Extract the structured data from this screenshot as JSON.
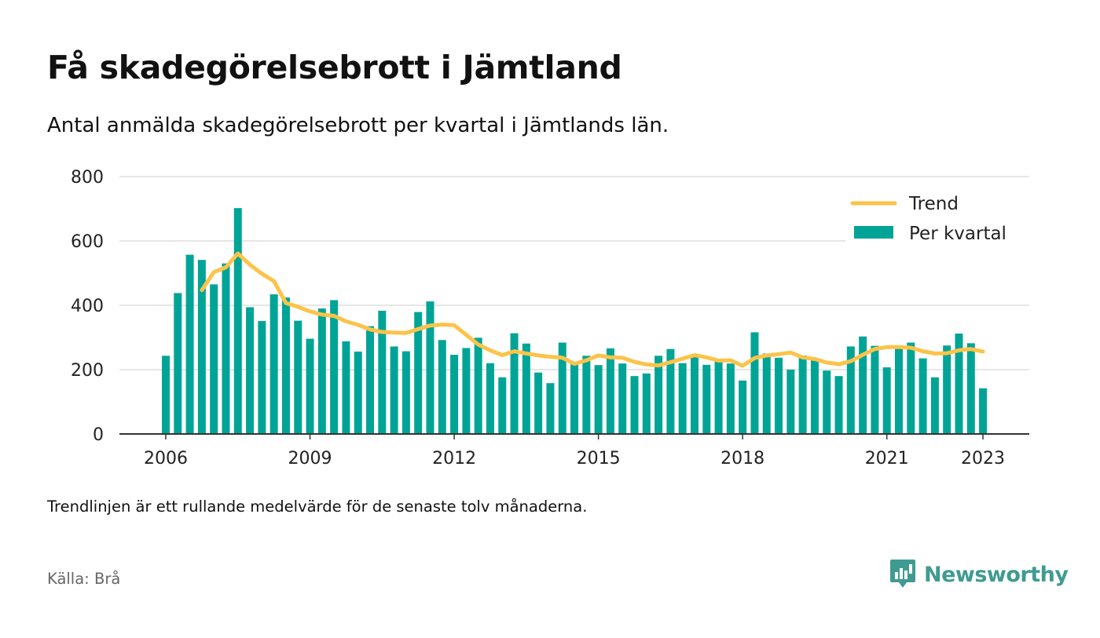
{
  "header": {
    "title": "Få skadegörelsebrott i Jämtland",
    "subtitle": "Antal anmälda skadegörelsebrott per kvartal i Jämtlands län."
  },
  "footer": {
    "note": "Trendlinjen är ett rullande medelvärde för de senaste tolv månaderna.",
    "source": "Källa: Brå",
    "brand": "Newsworthy"
  },
  "colors": {
    "bar": "#00a496",
    "trend": "#fbc34a",
    "grid": "#dddddd",
    "axis": "#333333",
    "brand": "#3f9b92"
  },
  "chart_data": {
    "type": "bar",
    "title": "Få skadegörelsebrott i Jämtland",
    "subtitle": "Antal anmälda skadegörelsebrott per kvartal i Jämtlands län.",
    "xlabel": "",
    "ylabel": "",
    "ylim": [
      0,
      800
    ],
    "yticks": [
      0,
      200,
      400,
      600,
      800
    ],
    "xticks": [
      "2006",
      "2009",
      "2012",
      "2015",
      "2018",
      "2021",
      "2023"
    ],
    "grid": true,
    "legend_position": "top-right",
    "categories": [
      "2006 Q1",
      "2006 Q2",
      "2006 Q3",
      "2006 Q4",
      "2007 Q1",
      "2007 Q2",
      "2007 Q3",
      "2007 Q4",
      "2008 Q1",
      "2008 Q2",
      "2008 Q3",
      "2008 Q4",
      "2009 Q1",
      "2009 Q2",
      "2009 Q3",
      "2009 Q4",
      "2010 Q1",
      "2010 Q2",
      "2010 Q3",
      "2010 Q4",
      "2011 Q1",
      "2011 Q2",
      "2011 Q3",
      "2011 Q4",
      "2012 Q1",
      "2012 Q2",
      "2012 Q3",
      "2012 Q4",
      "2013 Q1",
      "2013 Q2",
      "2013 Q3",
      "2013 Q4",
      "2014 Q1",
      "2014 Q2",
      "2014 Q3",
      "2014 Q4",
      "2015 Q1",
      "2015 Q2",
      "2015 Q3",
      "2015 Q4",
      "2016 Q1",
      "2016 Q2",
      "2016 Q3",
      "2016 Q4",
      "2017 Q1",
      "2017 Q2",
      "2017 Q3",
      "2017 Q4",
      "2018 Q1",
      "2018 Q2",
      "2018 Q3",
      "2018 Q4",
      "2019 Q1",
      "2019 Q2",
      "2019 Q3",
      "2019 Q4",
      "2020 Q1",
      "2020 Q2",
      "2020 Q3",
      "2020 Q4",
      "2021 Q1",
      "2021 Q2",
      "2021 Q3",
      "2021 Q4",
      "2022 Q1",
      "2022 Q2",
      "2022 Q3",
      "2022 Q4",
      "2023 Q1"
    ],
    "series": [
      {
        "name": "Per kvartal",
        "type": "bar",
        "values": [
          243,
          438,
          557,
          541,
          465,
          530,
          702,
          394,
          351,
          434,
          424,
          352,
          296,
          390,
          416,
          288,
          256,
          335,
          383,
          272,
          257,
          379,
          412,
          292,
          246,
          267,
          299,
          220,
          176,
          313,
          281,
          191,
          158,
          284,
          219,
          243,
          214,
          266,
          219,
          180,
          188,
          243,
          264,
          220,
          240,
          215,
          225,
          219,
          166,
          316,
          250,
          237,
          200,
          244,
          230,
          197,
          180,
          272,
          303,
          274,
          207,
          272,
          284,
          235,
          176,
          275,
          312,
          282,
          142
        ]
      },
      {
        "name": "Trend",
        "type": "line",
        "values": [
          null,
          null,
          null,
          447,
          503,
          518,
          561,
          526,
          498,
          475,
          407,
          395,
          381,
          371,
          367,
          350,
          339,
          325,
          317,
          315,
          314,
          326,
          337,
          340,
          338,
          308,
          278,
          260,
          245,
          257,
          250,
          244,
          240,
          237,
          218,
          229,
          244,
          238,
          237,
          224,
          216,
          213,
          223,
          234,
          245,
          238,
          228,
          229,
          212,
          236,
          244,
          248,
          253,
          238,
          233,
          222,
          217,
          226,
          246,
          264,
          270,
          270,
          268,
          257,
          250,
          251,
          260,
          264,
          256
        ]
      }
    ]
  }
}
